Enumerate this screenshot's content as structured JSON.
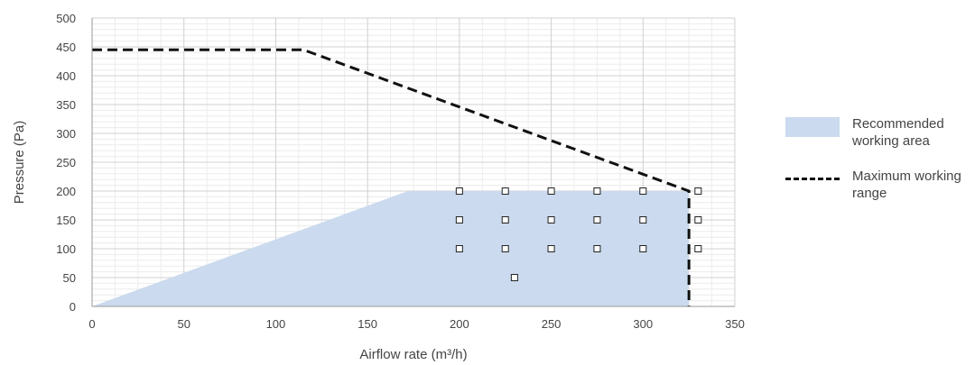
{
  "chart_data": {
    "type": "area",
    "xlabel": "Airflow rate (m³/h)",
    "ylabel": "Pressure (Pa)",
    "xlim": [
      0,
      350
    ],
    "ylim": [
      0,
      500
    ],
    "x_ticks": [
      0,
      50,
      100,
      150,
      200,
      250,
      300,
      350
    ],
    "y_ticks": [
      0,
      50,
      100,
      150,
      200,
      250,
      300,
      350,
      400,
      450,
      500
    ],
    "grid": true,
    "legend_position": "right",
    "series": [
      {
        "name": "Recommended working area",
        "kind": "area",
        "color": "#cbdaee",
        "x": [
          0,
          172,
          325,
          325
        ],
        "y": [
          0,
          200,
          200,
          0
        ]
      },
      {
        "name": "Maximum working range",
        "kind": "dashed-line",
        "color": "#111111",
        "x": [
          0,
          115,
          325,
          325
        ],
        "y": [
          445,
          445,
          200,
          0
        ]
      },
      {
        "name": "",
        "kind": "markers",
        "points": [
          [
            200,
            200
          ],
          [
            225,
            200
          ],
          [
            250,
            200
          ],
          [
            275,
            200
          ],
          [
            300,
            200
          ],
          [
            330,
            200
          ],
          [
            200,
            150
          ],
          [
            225,
            150
          ],
          [
            250,
            150
          ],
          [
            275,
            150
          ],
          [
            300,
            150
          ],
          [
            330,
            150
          ],
          [
            200,
            100
          ],
          [
            225,
            100
          ],
          [
            250,
            100
          ],
          [
            275,
            100
          ],
          [
            300,
            100
          ],
          [
            330,
            100
          ],
          [
            230,
            50
          ]
        ]
      }
    ]
  },
  "legend": {
    "area_label": "Recommended working area",
    "line_label": "Maximum working range"
  }
}
